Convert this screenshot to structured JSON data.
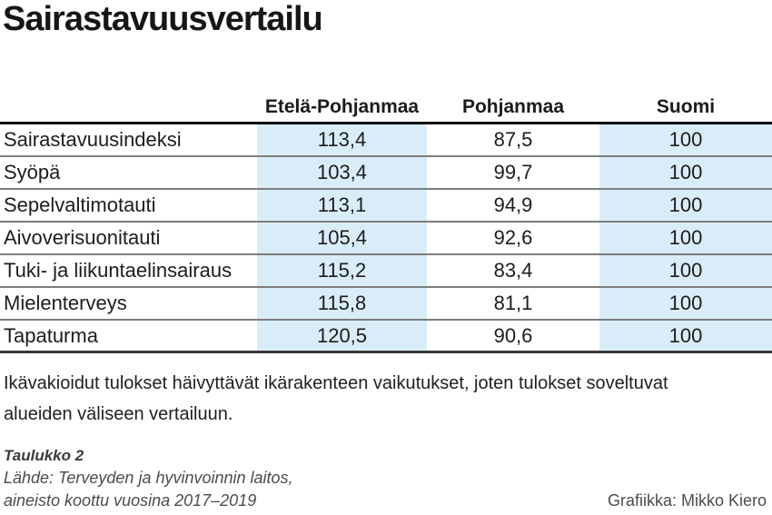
{
  "title": "Sairastavuusvertailu",
  "table": {
    "columns": [
      "Etelä-Pohjanmaa",
      "Pohjanmaa",
      "Suomi"
    ],
    "rows": [
      {
        "label": "Sairastavuusindeksi",
        "values": [
          "113,4",
          "87,5",
          "100"
        ]
      },
      {
        "label": "Syöpä",
        "values": [
          "103,4",
          "99,7",
          "100"
        ]
      },
      {
        "label": "Sepelvaltimotauti",
        "values": [
          "113,1",
          "94,9",
          "100"
        ]
      },
      {
        "label": "Aivoverisuonitauti",
        "values": [
          "105,4",
          "92,6",
          "100"
        ]
      },
      {
        "label": "Tuki- ja liikuntaelinsairaus",
        "values": [
          "115,2",
          "83,4",
          "100"
        ]
      },
      {
        "label": "Mielenterveys",
        "values": [
          "115,8",
          "81,1",
          "100"
        ]
      },
      {
        "label": "Tapaturma",
        "values": [
          "120,5",
          "90,6",
          "100"
        ]
      }
    ]
  },
  "note": "Ikävakioidut tulokset häivyttävät ikärakenteen vaikutukset, joten tulokset soveltuvat alueiden väliseen vertailuun.",
  "footer": {
    "table_ref": "Taulukko 2",
    "source_line1": "Lähde: Terveyden ja hyvinvoinnin laitos,",
    "source_line2": "aineisto koottu vuosina 2017–2019",
    "credit": "Grafiikka: Mikko Kiero"
  },
  "colors": {
    "highlight": "#d9edf9",
    "header_rule": "#0a0a0a",
    "row_rule": "#7d7d7d",
    "bottom_rule": "#3a3a3a",
    "text": "#1d1d1b"
  },
  "chart_data": {
    "type": "table",
    "title": "Sairastavuusvertailu",
    "columns": [
      "Etelä-Pohjanmaa",
      "Pohjanmaa",
      "Suomi"
    ],
    "row_labels": [
      "Sairastavuusindeksi",
      "Syöpä",
      "Sepelvaltimotauti",
      "Aivoverisuonitauti",
      "Tuki- ja liikuntaelinsairaus",
      "Mielenterveys",
      "Tapaturma"
    ],
    "series": [
      {
        "name": "Etelä-Pohjanmaa",
        "values": [
          113.4,
          103.4,
          113.1,
          105.4,
          115.2,
          115.8,
          120.5
        ]
      },
      {
        "name": "Pohjanmaa",
        "values": [
          87.5,
          99.7,
          94.9,
          92.6,
          83.4,
          81.1,
          90.6
        ]
      },
      {
        "name": "Suomi",
        "values": [
          100,
          100,
          100,
          100,
          100,
          100,
          100
        ]
      }
    ],
    "highlighted_columns": [
      "Etelä-Pohjanmaa",
      "Suomi"
    ],
    "note": "Ikävakioidut tulokset häivyttävät ikärakenteen vaikutukset, joten tulokset soveltuvat alueiden väliseen vertailuun.",
    "source": "Lähde: Terveyden ja hyvinvoinnin laitos, aineisto koottu vuosina 2017–2019",
    "credit": "Grafiikka: Mikko Kiero",
    "figure_ref": "Taulukko 2"
  }
}
